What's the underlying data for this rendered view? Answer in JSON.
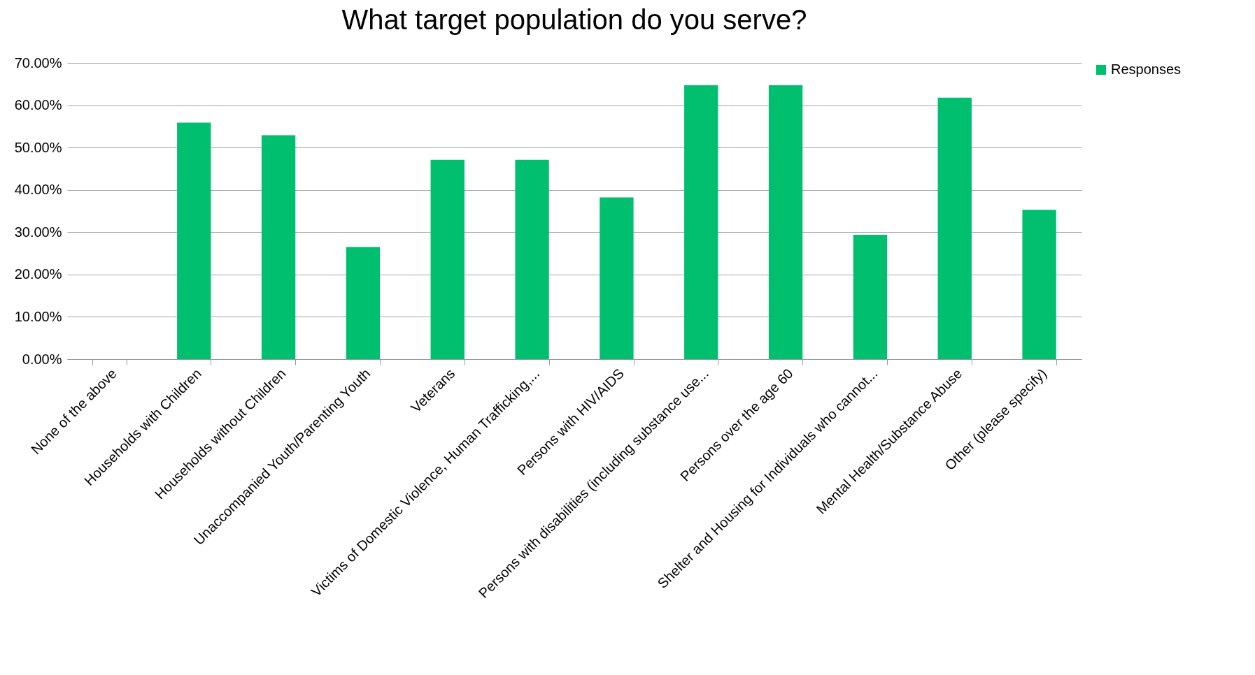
{
  "chart_data": {
    "type": "bar",
    "title": "What target population do you serve?",
    "categories": [
      "None of the above",
      "Households with Children",
      "Households without Children",
      "Unaccompanied Youth/Parenting Youth",
      "Veterans",
      "Victims of Domestic Violence, Human Trafficking,...",
      "Persons with HIV/AIDS",
      "Persons with disabilities (including substance use...",
      "Persons over the age 60",
      "Shelter and Housing for Individuals who cannot...",
      "Mental Health/Substance Abuse",
      "Other (please specify)"
    ],
    "series": [
      {
        "name": "Responses",
        "color": "#00bf6f",
        "values": [
          0,
          55.9,
          52.9,
          26.5,
          47.1,
          47.1,
          38.2,
          64.7,
          64.7,
          29.4,
          61.8,
          35.3
        ]
      }
    ],
    "ylim": [
      0,
      70
    ],
    "yticks": [
      {
        "value": 0,
        "label": "0.00%"
      },
      {
        "value": 10,
        "label": "10.00%"
      },
      {
        "value": 20,
        "label": "20.00%"
      },
      {
        "value": 30,
        "label": "30.00%"
      },
      {
        "value": 40,
        "label": "40.00%"
      },
      {
        "value": 50,
        "label": "50.00%"
      },
      {
        "value": 60,
        "label": "60.00%"
      },
      {
        "value": 70,
        "label": "70.00%"
      }
    ],
    "grid": "y",
    "legend": "right"
  }
}
